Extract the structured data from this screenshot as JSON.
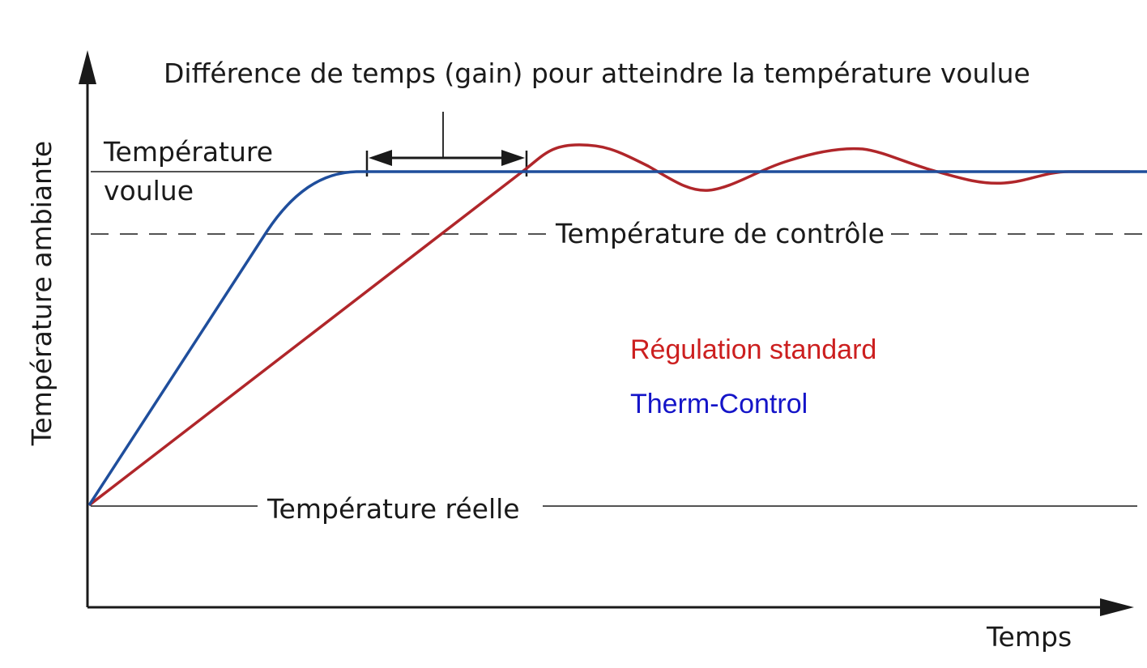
{
  "title": "Différence de temps (gain) pour atteindre la température voulue",
  "axes": {
    "y_label": "Température ambiante",
    "x_label": "Temps"
  },
  "levels": {
    "target_line1": "Température",
    "target_line2": "voulue",
    "control": "Température de contrôle",
    "actual": "Température réelle"
  },
  "legend": {
    "standard": "Régulation standard",
    "therm": "Therm-Control"
  },
  "colors": {
    "standard": "#b0262a",
    "therm": "#1f4e9c",
    "standard_text": "#cc1f1f",
    "therm_text": "#1414c8",
    "ink": "#1a1a1a"
  }
}
